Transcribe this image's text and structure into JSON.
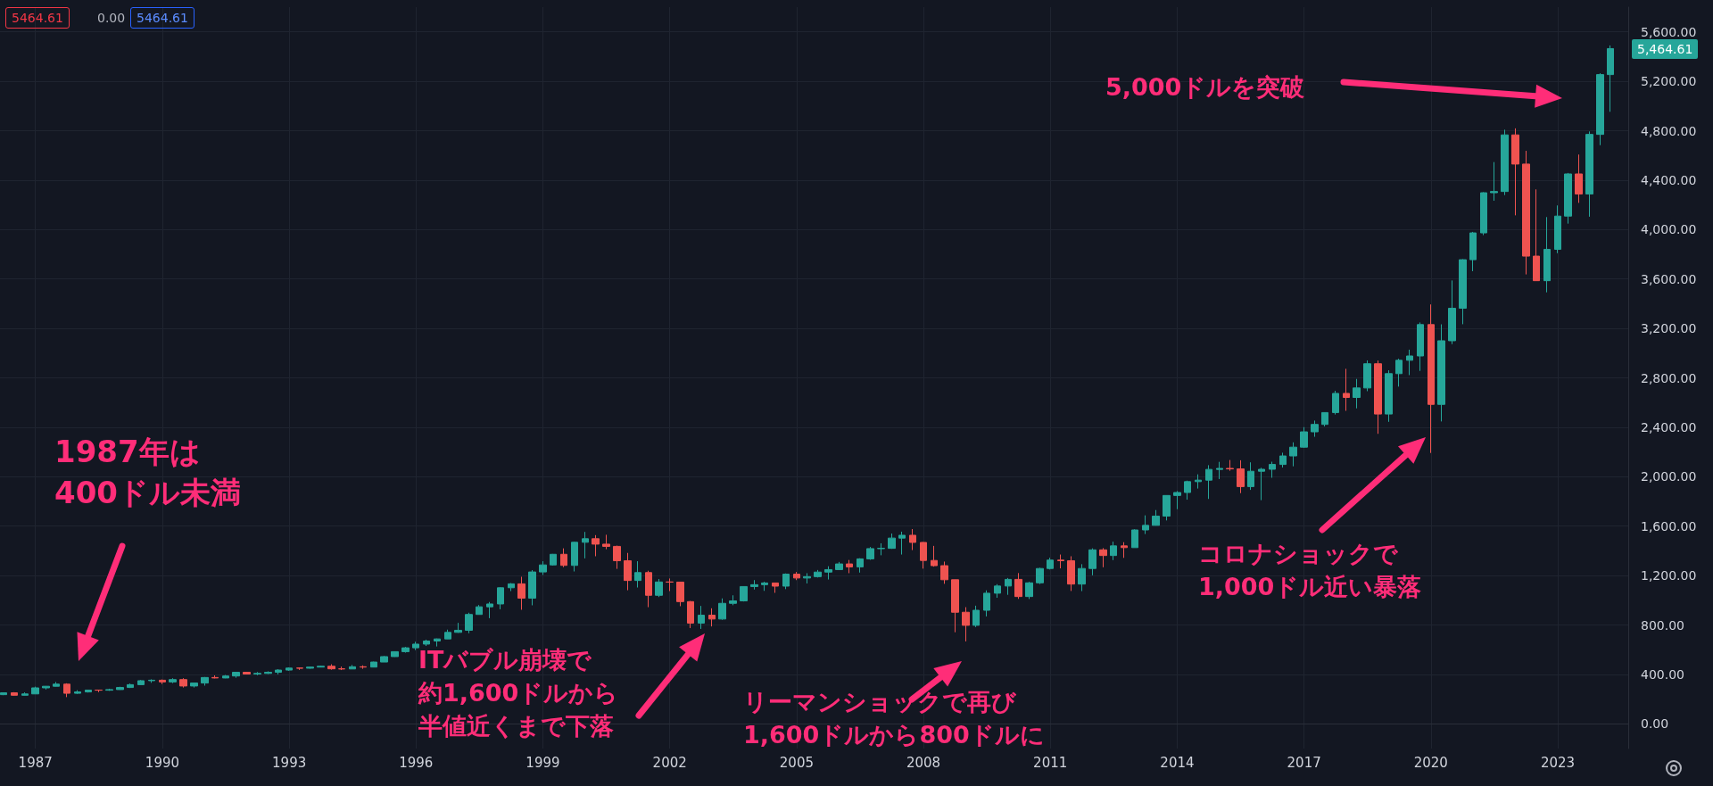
{
  "chart_data": {
    "type": "candlestick",
    "grid": true,
    "xlim": [
      "1986-03",
      "2024-09"
    ],
    "xticks": [
      "1987",
      "1990",
      "1993",
      "1996",
      "1999",
      "2002",
      "2005",
      "2008",
      "2011",
      "2014",
      "2017",
      "2020",
      "2023"
    ],
    "ylim": [
      -200,
      5800
    ],
    "yticks": [
      {
        "value": 0,
        "label": "0.00"
      },
      {
        "value": 400,
        "label": "400.00"
      },
      {
        "value": 800,
        "label": "800.00"
      },
      {
        "value": 1200,
        "label": "1,200.00"
      },
      {
        "value": 1600,
        "label": "1,600.00"
      },
      {
        "value": 2000,
        "label": "2,000.00"
      },
      {
        "value": 2400,
        "label": "2,400.00"
      },
      {
        "value": 2800,
        "label": "2,800.00"
      },
      {
        "value": 3200,
        "label": "3,200.00"
      },
      {
        "value": 3600,
        "label": "3,600.00"
      },
      {
        "value": 4000,
        "label": "4,000.00"
      },
      {
        "value": 4400,
        "label": "4,400.00"
      },
      {
        "value": 4800,
        "label": "4,800.00"
      },
      {
        "value": 5200,
        "label": "5,200.00"
      },
      {
        "value": 5600,
        "label": "5,600.00"
      }
    ],
    "annotations": [
      "5464.61",
      "0.00",
      "5464.61",
      "1987年は",
      "400ドル未満",
      "ITバブル崩壊で",
      "約1,600ドルから",
      "半値近くまで下落",
      "リーマンショックで再び",
      "1,600ドルから800ドルに",
      "コロナショックで",
      "1,000ドル近い暴落",
      "5,000ドルを突破",
      "5,464.61"
    ],
    "x": [
      "1986-04",
      "1986-07",
      "1986-10",
      "1987-01",
      "1987-04",
      "1987-07",
      "1987-10",
      "1988-01",
      "1988-04",
      "1988-07",
      "1988-10",
      "1989-01",
      "1989-04",
      "1989-07",
      "1989-10",
      "1990-01",
      "1990-04",
      "1990-07",
      "1990-10",
      "1991-01",
      "1991-04",
      "1991-07",
      "1991-10",
      "1992-01",
      "1992-04",
      "1992-07",
      "1992-10",
      "1993-01",
      "1993-04",
      "1993-07",
      "1993-10",
      "1994-01",
      "1994-04",
      "1994-07",
      "1994-10",
      "1995-01",
      "1995-04",
      "1995-07",
      "1995-10",
      "1996-01",
      "1996-04",
      "1996-07",
      "1996-10",
      "1997-01",
      "1997-04",
      "1997-07",
      "1997-10",
      "1998-01",
      "1998-04",
      "1998-07",
      "1998-10",
      "1999-01",
      "1999-04",
      "1999-07",
      "1999-10",
      "2000-01",
      "2000-04",
      "2000-07",
      "2000-10",
      "2001-01",
      "2001-04",
      "2001-07",
      "2001-10",
      "2002-01",
      "2002-04",
      "2002-07",
      "2002-10",
      "2003-01",
      "2003-04",
      "2003-07",
      "2003-10",
      "2004-01",
      "2004-04",
      "2004-07",
      "2004-10",
      "2005-01",
      "2005-04",
      "2005-07",
      "2005-10",
      "2006-01",
      "2006-04",
      "2006-07",
      "2006-10",
      "2007-01",
      "2007-04",
      "2007-07",
      "2007-10",
      "2008-01",
      "2008-04",
      "2008-07",
      "2008-10",
      "2009-01",
      "2009-04",
      "2009-07",
      "2009-10",
      "2010-01",
      "2010-04",
      "2010-07",
      "2010-10",
      "2011-01",
      "2011-04",
      "2011-07",
      "2011-10",
      "2012-01",
      "2012-04",
      "2012-07",
      "2012-10",
      "2013-01",
      "2013-04",
      "2013-07",
      "2013-10",
      "2014-01",
      "2014-04",
      "2014-07",
      "2014-10",
      "2015-01",
      "2015-04",
      "2015-07",
      "2015-10",
      "2016-01",
      "2016-04",
      "2016-07",
      "2016-10",
      "2017-01",
      "2017-04",
      "2017-07",
      "2017-10",
      "2018-01",
      "2018-04",
      "2018-07",
      "2018-10",
      "2019-01",
      "2019-04",
      "2019-07",
      "2019-10",
      "2020-01",
      "2020-04",
      "2020-07",
      "2020-10",
      "2021-01",
      "2021-04",
      "2021-07",
      "2021-10",
      "2022-01",
      "2022-04",
      "2022-07",
      "2022-10",
      "2023-01",
      "2023-04",
      "2023-07",
      "2023-10",
      "2024-01",
      "2024-04"
    ],
    "ohlc": [
      [
        236,
        254,
        232,
        251
      ],
      [
        251,
        256,
        228,
        231
      ],
      [
        231,
        254,
        230,
        242
      ],
      [
        242,
        301,
        242,
        291
      ],
      [
        291,
        306,
        278,
        304
      ],
      [
        304,
        338,
        302,
        321
      ],
      [
        321,
        328,
        216,
        247
      ],
      [
        247,
        272,
        242,
        258
      ],
      [
        258,
        275,
        253,
        273
      ],
      [
        273,
        276,
        256,
        272
      ],
      [
        272,
        284,
        267,
        277
      ],
      [
        277,
        300,
        275,
        294
      ],
      [
        294,
        326,
        290,
        317
      ],
      [
        317,
        354,
        316,
        349
      ],
      [
        349,
        360,
        332,
        353
      ],
      [
        353,
        359,
        322,
        339
      ],
      [
        339,
        369,
        329,
        358
      ],
      [
        358,
        369,
        294,
        306
      ],
      [
        306,
        332,
        294,
        330
      ],
      [
        330,
        379,
        309,
        375
      ],
      [
        375,
        392,
        368,
        371
      ],
      [
        371,
        395,
        369,
        387
      ],
      [
        387,
        419,
        373,
        417
      ],
      [
        417,
        421,
        400,
        403
      ],
      [
        403,
        419,
        393,
        408
      ],
      [
        408,
        425,
        403,
        417
      ],
      [
        417,
        442,
        400,
        435
      ],
      [
        435,
        456,
        429,
        451
      ],
      [
        451,
        454,
        436,
        450
      ],
      [
        450,
        463,
        446,
        459
      ],
      [
        459,
        470,
        457,
        466
      ],
      [
        466,
        482,
        438,
        445
      ],
      [
        445,
        463,
        435,
        444
      ],
      [
        444,
        476,
        444,
        462
      ],
      [
        462,
        473,
        445,
        459
      ],
      [
        459,
        503,
        457,
        500
      ],
      [
        500,
        549,
        500,
        544
      ],
      [
        544,
        586,
        542,
        584
      ],
      [
        584,
        622,
        576,
        615
      ],
      [
        615,
        664,
        597,
        645
      ],
      [
        645,
        681,
        630,
        670
      ],
      [
        670,
        690,
        626,
        687
      ],
      [
        687,
        762,
        686,
        740
      ],
      [
        740,
        817,
        736,
        757
      ],
      [
        757,
        899,
        733,
        885
      ],
      [
        885,
        961,
        883,
        947
      ],
      [
        947,
        986,
        855,
        970
      ],
      [
        970,
        1105,
        927,
        1101
      ],
      [
        1101,
        1139,
        1074,
        1133
      ],
      [
        1133,
        1190,
        923,
        1017
      ],
      [
        1017,
        1244,
        959,
        1229
      ],
      [
        1229,
        1316,
        1205,
        1286
      ],
      [
        1286,
        1375,
        1281,
        1372
      ],
      [
        1372,
        1420,
        1268,
        1282
      ],
      [
        1282,
        1473,
        1233,
        1469
      ],
      [
        1469,
        1553,
        1339,
        1498
      ],
      [
        1498,
        1527,
        1356,
        1454
      ],
      [
        1454,
        1530,
        1413,
        1436
      ],
      [
        1436,
        1442,
        1254,
        1320
      ],
      [
        1320,
        1383,
        1081,
        1160
      ],
      [
        1160,
        1316,
        1103,
        1224
      ],
      [
        1224,
        1239,
        944,
        1040
      ],
      [
        1040,
        1172,
        1026,
        1148
      ],
      [
        1148,
        1176,
        1074,
        1147
      ],
      [
        1147,
        1147,
        952,
        989
      ],
      [
        989,
        994,
        775,
        815
      ],
      [
        815,
        954,
        768,
        879
      ],
      [
        879,
        935,
        788,
        848
      ],
      [
        848,
        1015,
        842,
        975
      ],
      [
        975,
        1040,
        960,
        995
      ],
      [
        995,
        1112,
        990,
        1111
      ],
      [
        1111,
        1163,
        1087,
        1126
      ],
      [
        1126,
        1150,
        1076,
        1140
      ],
      [
        1140,
        1141,
        1060,
        1114
      ],
      [
        1114,
        1217,
        1090,
        1211
      ],
      [
        1211,
        1229,
        1163,
        1180
      ],
      [
        1180,
        1219,
        1136,
        1191
      ],
      [
        1191,
        1245,
        1184,
        1228
      ],
      [
        1228,
        1275,
        1168,
        1248
      ],
      [
        1248,
        1310,
        1245,
        1294
      ],
      [
        1294,
        1326,
        1219,
        1270
      ],
      [
        1270,
        1340,
        1224,
        1335
      ],
      [
        1335,
        1431,
        1327,
        1418
      ],
      [
        1418,
        1461,
        1364,
        1420
      ],
      [
        1420,
        1540,
        1416,
        1503
      ],
      [
        1503,
        1555,
        1370,
        1526
      ],
      [
        1526,
        1576,
        1406,
        1468
      ],
      [
        1468,
        1471,
        1256,
        1322
      ],
      [
        1322,
        1440,
        1272,
        1280
      ],
      [
        1280,
        1313,
        1133,
        1166
      ],
      [
        1166,
        1167,
        741,
        903
      ],
      [
        903,
        944,
        667,
        797
      ],
      [
        797,
        956,
        783,
        919
      ],
      [
        919,
        1080,
        869,
        1057
      ],
      [
        1057,
        1130,
        1020,
        1115
      ],
      [
        1115,
        1180,
        1044,
        1169
      ],
      [
        1169,
        1220,
        1011,
        1030
      ],
      [
        1030,
        1149,
        1010,
        1141
      ],
      [
        1141,
        1263,
        1131,
        1257
      ],
      [
        1257,
        1344,
        1249,
        1325
      ],
      [
        1325,
        1370,
        1258,
        1320
      ],
      [
        1320,
        1356,
        1075,
        1131
      ],
      [
        1131,
        1292,
        1074,
        1257
      ],
      [
        1257,
        1420,
        1202,
        1408
      ],
      [
        1408,
        1422,
        1267,
        1362
      ],
      [
        1362,
        1474,
        1325,
        1440
      ],
      [
        1440,
        1470,
        1343,
        1426
      ],
      [
        1426,
        1574,
        1426,
        1569
      ],
      [
        1569,
        1687,
        1536,
        1606
      ],
      [
        1606,
        1730,
        1604,
        1681
      ],
      [
        1681,
        1849,
        1646,
        1848
      ],
      [
        1848,
        1884,
        1737,
        1872
      ],
      [
        1872,
        1968,
        1814,
        1960
      ],
      [
        1960,
        2019,
        1904,
        1972
      ],
      [
        1972,
        2093,
        1820,
        2059
      ],
      [
        2059,
        2120,
        1981,
        2067
      ],
      [
        2067,
        2135,
        2048,
        2063
      ],
      [
        2063,
        2133,
        1867,
        1920
      ],
      [
        1920,
        2116,
        1893,
        2044
      ],
      [
        2044,
        2072,
        1810,
        2060
      ],
      [
        2060,
        2121,
        1991,
        2099
      ],
      [
        2099,
        2194,
        2074,
        2168
      ],
      [
        2168,
        2278,
        2084,
        2239
      ],
      [
        2239,
        2401,
        2233,
        2363
      ],
      [
        2363,
        2454,
        2323,
        2423
      ],
      [
        2423,
        2520,
        2407,
        2519
      ],
      [
        2519,
        2695,
        2503,
        2674
      ],
      [
        2674,
        2873,
        2533,
        2641
      ],
      [
        2641,
        2791,
        2553,
        2718
      ],
      [
        2718,
        2941,
        2692,
        2914
      ],
      [
        2914,
        2940,
        2347,
        2507
      ],
      [
        2507,
        2861,
        2444,
        2834
      ],
      [
        2834,
        2955,
        2729,
        2942
      ],
      [
        2942,
        3028,
        2822,
        2977
      ],
      [
        2977,
        3248,
        2856,
        3231
      ],
      [
        3231,
        3394,
        2192,
        2585
      ],
      [
        2585,
        3233,
        2447,
        3100
      ],
      [
        3100,
        3588,
        3073,
        3363
      ],
      [
        3363,
        3760,
        3234,
        3756
      ],
      [
        3756,
        3981,
        3663,
        3973
      ],
      [
        3973,
        4302,
        3955,
        4298
      ],
      [
        4298,
        4546,
        4233,
        4308
      ],
      [
        4308,
        4808,
        4279,
        4766
      ],
      [
        4766,
        4819,
        4115,
        4530
      ],
      [
        4530,
        4637,
        3637,
        3785
      ],
      [
        3785,
        4325,
        3584,
        3586
      ],
      [
        3586,
        4101,
        3492,
        3840
      ],
      [
        3840,
        4195,
        3809,
        4109
      ],
      [
        4109,
        4458,
        4048,
        4450
      ],
      [
        4450,
        4607,
        4216,
        4288
      ],
      [
        4288,
        4794,
        4104,
        4770
      ],
      [
        4770,
        5265,
        4683,
        5254
      ],
      [
        5254,
        5490,
        4953,
        5464.61
      ]
    ]
  }
}
